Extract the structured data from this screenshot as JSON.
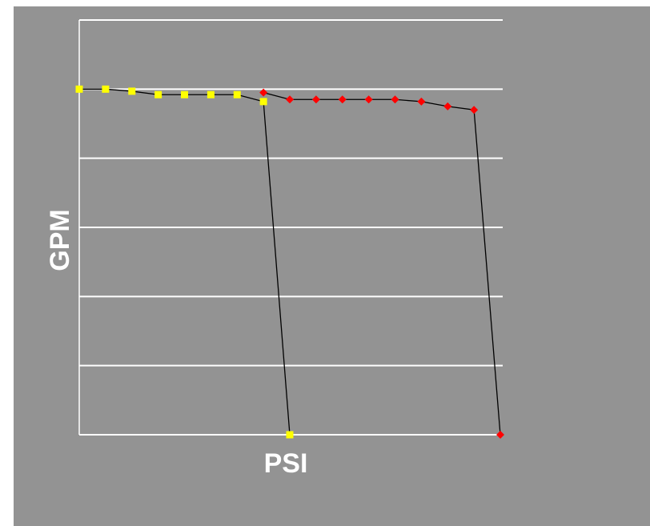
{
  "chart_data": {
    "type": "line",
    "title": "",
    "xlabel": "PSI",
    "ylabel": "GPM",
    "xlim": [
      0,
      16
    ],
    "ylim": [
      0,
      6
    ],
    "grid": true,
    "legend": "none",
    "series": [
      {
        "color": "#ff0000",
        "marker": "diamond",
        "x": [
          7,
          8,
          9,
          10,
          11,
          12,
          13,
          14,
          15,
          16
        ],
        "y": [
          4.95,
          4.85,
          4.85,
          4.85,
          4.85,
          4.85,
          4.82,
          4.75,
          4.7,
          0
        ]
      },
      {
        "color": "#ffff00",
        "marker": "square",
        "x": [
          0,
          1,
          2,
          3,
          4,
          5,
          6,
          7,
          8
        ],
        "y": [
          5.0,
          5.0,
          4.97,
          4.92,
          4.92,
          4.92,
          4.92,
          4.82,
          0
        ]
      }
    ]
  }
}
